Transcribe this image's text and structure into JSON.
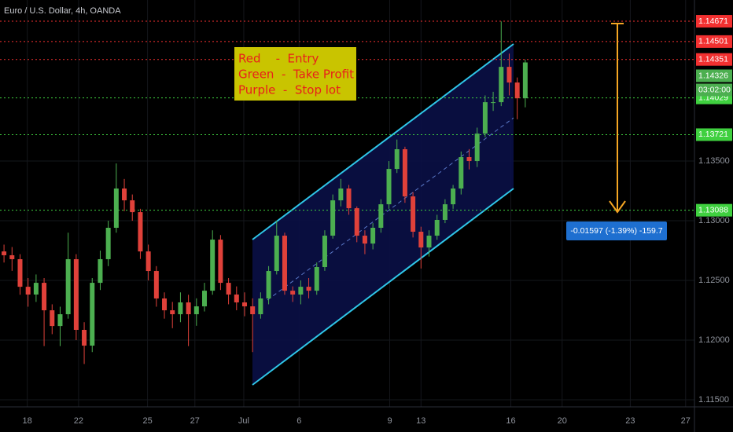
{
  "chart_data": {
    "type": "candlestick",
    "title": "Euro / U.S. Dollar, 4h, OANDA",
    "up_color": "#4caf50",
    "down_color": "#e0413a",
    "candles": [
      [
        1.12743,
        1.128,
        1.1265,
        1.12711
      ],
      [
        1.12711,
        1.1278,
        1.1258,
        1.12678
      ],
      [
        1.12678,
        1.1272,
        1.1238,
        1.12447
      ],
      [
        1.12447,
        1.1252,
        1.1228,
        1.12382
      ],
      [
        1.12382,
        1.1255,
        1.1232,
        1.1248
      ],
      [
        1.1248,
        1.1252,
        1.1195,
        1.1225
      ],
      [
        1.1225,
        1.123,
        1.1205,
        1.12118
      ],
      [
        1.12118,
        1.1228,
        1.1195,
        1.12217
      ],
      [
        1.12217,
        1.129,
        1.1218,
        1.12678
      ],
      [
        1.12678,
        1.1272,
        1.12,
        1.12086
      ],
      [
        1.12086,
        1.1215,
        1.118,
        1.11954
      ],
      [
        1.11954,
        1.1252,
        1.119,
        1.1248
      ],
      [
        1.1248,
        1.1275,
        1.1242,
        1.12678
      ],
      [
        1.12678,
        1.13,
        1.1262,
        1.12941
      ],
      [
        1.12941,
        1.1348,
        1.129,
        1.1327
      ],
      [
        1.1327,
        1.1335,
        1.1308,
        1.13171
      ],
      [
        1.13171,
        1.1322,
        1.13,
        1.13072
      ],
      [
        1.13072,
        1.131,
        1.1268,
        1.12743
      ],
      [
        1.12743,
        1.128,
        1.125,
        1.12579
      ],
      [
        1.12579,
        1.1262,
        1.1228,
        1.12349
      ],
      [
        1.12349,
        1.124,
        1.1218,
        1.1225
      ],
      [
        1.1225,
        1.1232,
        1.121,
        1.12217
      ],
      [
        1.12217,
        1.124,
        1.1215,
        1.12316
      ],
      [
        1.12316,
        1.1238,
        1.1195,
        1.12217
      ],
      [
        1.12217,
        1.1235,
        1.1212,
        1.12283
      ],
      [
        1.12283,
        1.1248,
        1.1224,
        1.12414
      ],
      [
        1.12414,
        1.1292,
        1.1238,
        1.12842
      ],
      [
        1.12842,
        1.1288,
        1.1242,
        1.1248
      ],
      [
        1.1248,
        1.1252,
        1.123,
        1.12382
      ],
      [
        1.12382,
        1.1245,
        1.1225,
        1.12316
      ],
      [
        1.12316,
        1.124,
        1.122,
        1.12283
      ],
      [
        1.12283,
        1.1235,
        1.119,
        1.12217
      ],
      [
        1.12217,
        1.124,
        1.1218,
        1.12349
      ],
      [
        1.12349,
        1.1262,
        1.123,
        1.12579
      ],
      [
        1.12579,
        1.13,
        1.1255,
        1.12875
      ],
      [
        1.12875,
        1.129,
        1.1238,
        1.12414
      ],
      [
        1.12414,
        1.1245,
        1.1232,
        1.12382
      ],
      [
        1.12382,
        1.125,
        1.123,
        1.12447
      ],
      [
        1.12447,
        1.1252,
        1.1235,
        1.12414
      ],
      [
        1.12414,
        1.1265,
        1.1238,
        1.12612
      ],
      [
        1.12612,
        1.1292,
        1.1258,
        1.12875
      ],
      [
        1.12875,
        1.1322,
        1.1285,
        1.13171
      ],
      [
        1.13171,
        1.1335,
        1.1312,
        1.1327
      ],
      [
        1.1327,
        1.133,
        1.1305,
        1.13105
      ],
      [
        1.13105,
        1.1312,
        1.1282,
        1.12875
      ],
      [
        1.12875,
        1.1292,
        1.1272,
        1.12809
      ],
      [
        1.12809,
        1.1298,
        1.1276,
        1.12941
      ],
      [
        1.12941,
        1.1318,
        1.129,
        1.13138
      ],
      [
        1.13138,
        1.135,
        1.131,
        1.13434
      ],
      [
        1.13434,
        1.1368,
        1.134,
        1.13599
      ],
      [
        1.13599,
        1.1362,
        1.1315,
        1.13204
      ],
      [
        1.13204,
        1.1324,
        1.1286,
        1.12908
      ],
      [
        1.12908,
        1.1295,
        1.126,
        1.12776
      ],
      [
        1.12776,
        1.1292,
        1.127,
        1.12875
      ],
      [
        1.12875,
        1.1305,
        1.1284,
        1.13007
      ],
      [
        1.13007,
        1.1318,
        1.1298,
        1.13138
      ],
      [
        1.13138,
        1.133,
        1.131,
        1.1327
      ],
      [
        1.1327,
        1.1358,
        1.1322,
        1.13533
      ],
      [
        1.13533,
        1.136,
        1.1343,
        1.135
      ],
      [
        1.135,
        1.1378,
        1.1345,
        1.1373
      ],
      [
        1.1373,
        1.1405,
        1.137,
        1.13993
      ],
      [
        1.13993,
        1.1408,
        1.1392,
        1.13993
      ],
      [
        1.13993,
        1.1467,
        1.1396,
        1.14289
      ],
      [
        1.14289,
        1.144,
        1.1405,
        1.14158
      ],
      [
        1.14158,
        1.142,
        1.1385,
        1.14026
      ],
      [
        1.14026,
        1.1435,
        1.1395,
        1.14326
      ]
    ],
    "xlim": [
      -0.5,
      86.1
    ],
    "xticks": [
      {
        "value": 2.9,
        "label": "18"
      },
      {
        "value": 9.3,
        "label": "22"
      },
      {
        "value": 17.9,
        "label": "25"
      },
      {
        "value": 23.8,
        "label": "27"
      },
      {
        "value": 29.9,
        "label": "Jul"
      },
      {
        "value": 36.8,
        "label": "6"
      },
      {
        "value": 48.1,
        "label": "9"
      },
      {
        "value": 52,
        "label": "13"
      },
      {
        "value": 63.2,
        "label": "16"
      },
      {
        "value": 69.6,
        "label": "20"
      },
      {
        "value": 78.1,
        "label": "23"
      },
      {
        "value": 85,
        "label": "27"
      }
    ],
    "ylim": [
      1.11441,
      1.14849
    ],
    "yticks": [
      {
        "value": 1.135,
        "label": "1.13500"
      },
      {
        "value": 1.13,
        "label": "1.13000"
      },
      {
        "value": 1.125,
        "label": "1.12500"
      },
      {
        "value": 1.12,
        "label": "1.12000"
      },
      {
        "value": 1.115,
        "label": "1.11500"
      }
    ],
    "grid": true,
    "levels": [
      {
        "value": 1.14671,
        "color": "#f23030"
      },
      {
        "value": 1.14501,
        "color": "#f23030"
      },
      {
        "value": 1.14351,
        "color": "#f23030"
      },
      {
        "value": 1.14029,
        "color": "#3fd03f"
      },
      {
        "value": 1.13721,
        "color": "#3fd03f"
      },
      {
        "value": 1.13088,
        "color": "#3fd03f"
      }
    ],
    "last_price": 1.14326,
    "last_price_color": "#4caf50",
    "countdown": "03:02:00",
    "legend_lines": [
      "Red    -  Entry",
      "Green  -  Take Profit",
      "Purple  -  Stop lot"
    ],
    "measure": "-0.01597 (-1.39%) -159.7"
  }
}
